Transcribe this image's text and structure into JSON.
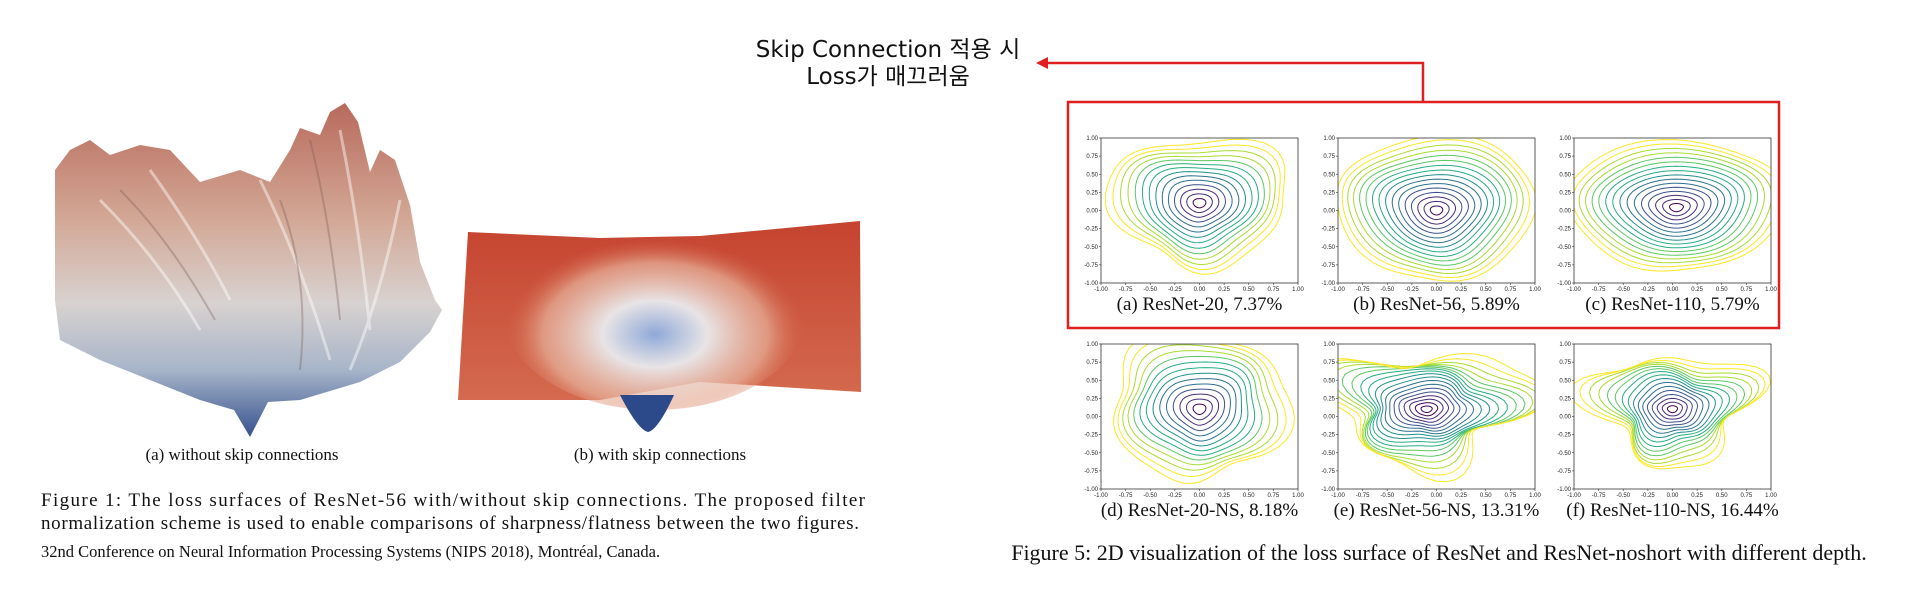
{
  "annotation": {
    "lines": [
      "Skip Connection 적용 시",
      "Loss가 매끄러움"
    ]
  },
  "figure1": {
    "subcaptions": [
      "(a) without skip connections",
      "(b) with skip connections"
    ],
    "caption": [
      "Figure 1: The loss surfaces of ResNet-56 with/without skip connections. The proposed filter",
      "normalization scheme is used to enable comparisons of sharpness/flatness between the two figures."
    ],
    "footnote": "32nd Conference on Neural Information Processing Systems (NIPS 2018), Montréal, Canada."
  },
  "figure5": {
    "panels": [
      "(a) ResNet-20, 7.37%",
      "(b) ResNet-56, 5.89%",
      "(c) ResNet-110, 5.79%",
      "(d) ResNet-20-NS, 8.18%",
      "(e) ResNet-56-NS, 13.31%",
      "(f) ResNet-110-NS, 16.44%"
    ],
    "xlim": [
      -1,
      1
    ],
    "ylim": [
      -1,
      1
    ],
    "ticks": [
      {
        "value": -1,
        "label": "-1.00"
      },
      {
        "value": -0.75,
        "label": "-0.75"
      },
      {
        "value": -0.5,
        "label": "-0.50"
      },
      {
        "value": -0.25,
        "label": "-0.25"
      },
      {
        "value": 0,
        "label": "0.00"
      },
      {
        "value": 0.25,
        "label": "0.25"
      },
      {
        "value": 0.5,
        "label": "0.50"
      },
      {
        "value": 0.75,
        "label": "0.75"
      },
      {
        "value": 1,
        "label": "1.00"
      }
    ],
    "caption": "Figure 5: 2D visualization of the loss surface of ResNet and ResNet-noshort with different depth."
  }
}
